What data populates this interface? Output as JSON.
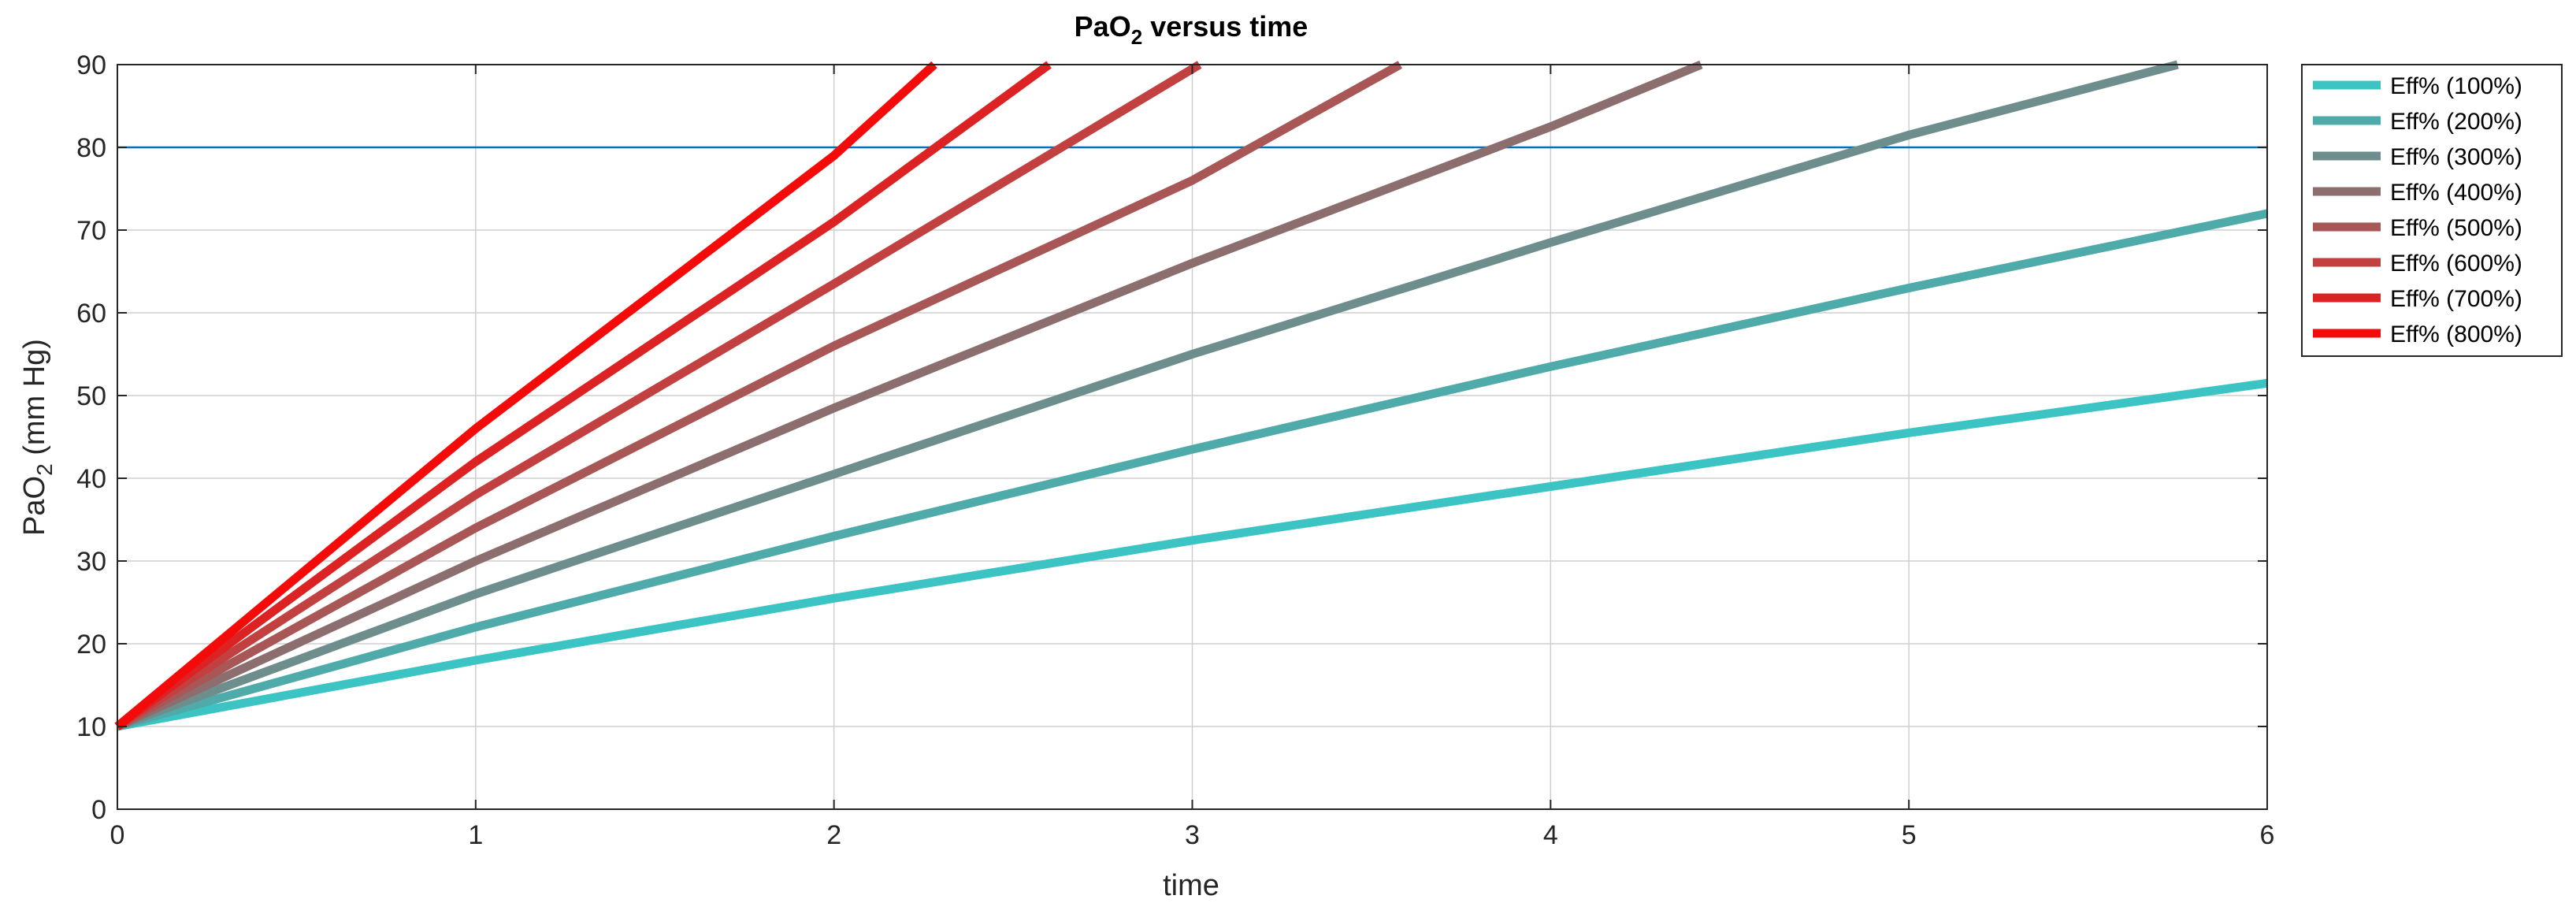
{
  "chart_data": {
    "type": "line",
    "title": "PaO2 versus time",
    "title_base": "PaO",
    "title_sub": "2",
    "title_rest": " versus time",
    "xlabel": "time",
    "ylabel_base": "PaO",
    "ylabel_sub": "2",
    "ylabel_rest": " (mm Hg)",
    "xlim": [
      0,
      6
    ],
    "ylim": [
      0,
      90
    ],
    "xticks": [
      0,
      1,
      2,
      3,
      4,
      5,
      6
    ],
    "yticks": [
      0,
      10,
      20,
      30,
      40,
      50,
      60,
      70,
      80,
      90
    ],
    "reference_line": {
      "y": 80,
      "color": "#0072BD"
    },
    "legend_location": "outside-right-top",
    "series": [
      {
        "name": "Eff% (100%)",
        "color": "#3CC4C4",
        "x": [
          0,
          1,
          2,
          3,
          4,
          5,
          6
        ],
        "y": [
          10,
          18,
          25.5,
          32.5,
          39,
          45.5,
          51.5
        ]
      },
      {
        "name": "Eff% (200%)",
        "color": "#4FAAAA",
        "x": [
          0,
          1,
          2,
          3,
          4,
          5,
          6
        ],
        "y": [
          10,
          22,
          33,
          43.5,
          53.5,
          63,
          72
        ]
      },
      {
        "name": "Eff% (300%)",
        "color": "#6E8E8E",
        "x": [
          0,
          1,
          2,
          3,
          4,
          5,
          5.75
        ],
        "y": [
          10,
          26,
          40.5,
          55,
          68.5,
          81.5,
          90
        ]
      },
      {
        "name": "Eff% (400%)",
        "color": "#8C6E6E",
        "x": [
          0,
          1,
          2,
          3,
          4,
          4.42
        ],
        "y": [
          10,
          30,
          48.5,
          66,
          82.5,
          90
        ]
      },
      {
        "name": "Eff% (500%)",
        "color": "#A85656",
        "x": [
          0,
          1,
          2,
          3,
          3.58
        ],
        "y": [
          10,
          34,
          56,
          76,
          90
        ]
      },
      {
        "name": "Eff% (600%)",
        "color": "#C24040",
        "x": [
          0,
          1,
          2,
          3.02
        ],
        "y": [
          10,
          38,
          63.5,
          90
        ]
      },
      {
        "name": "Eff% (700%)",
        "color": "#DC2222",
        "x": [
          0,
          1,
          2,
          2.6
        ],
        "y": [
          10,
          42,
          71,
          90
        ]
      },
      {
        "name": "Eff% (800%)",
        "color": "#F50A0A",
        "x": [
          0,
          1,
          2,
          2.28
        ],
        "y": [
          10,
          46,
          79,
          90
        ]
      }
    ]
  }
}
